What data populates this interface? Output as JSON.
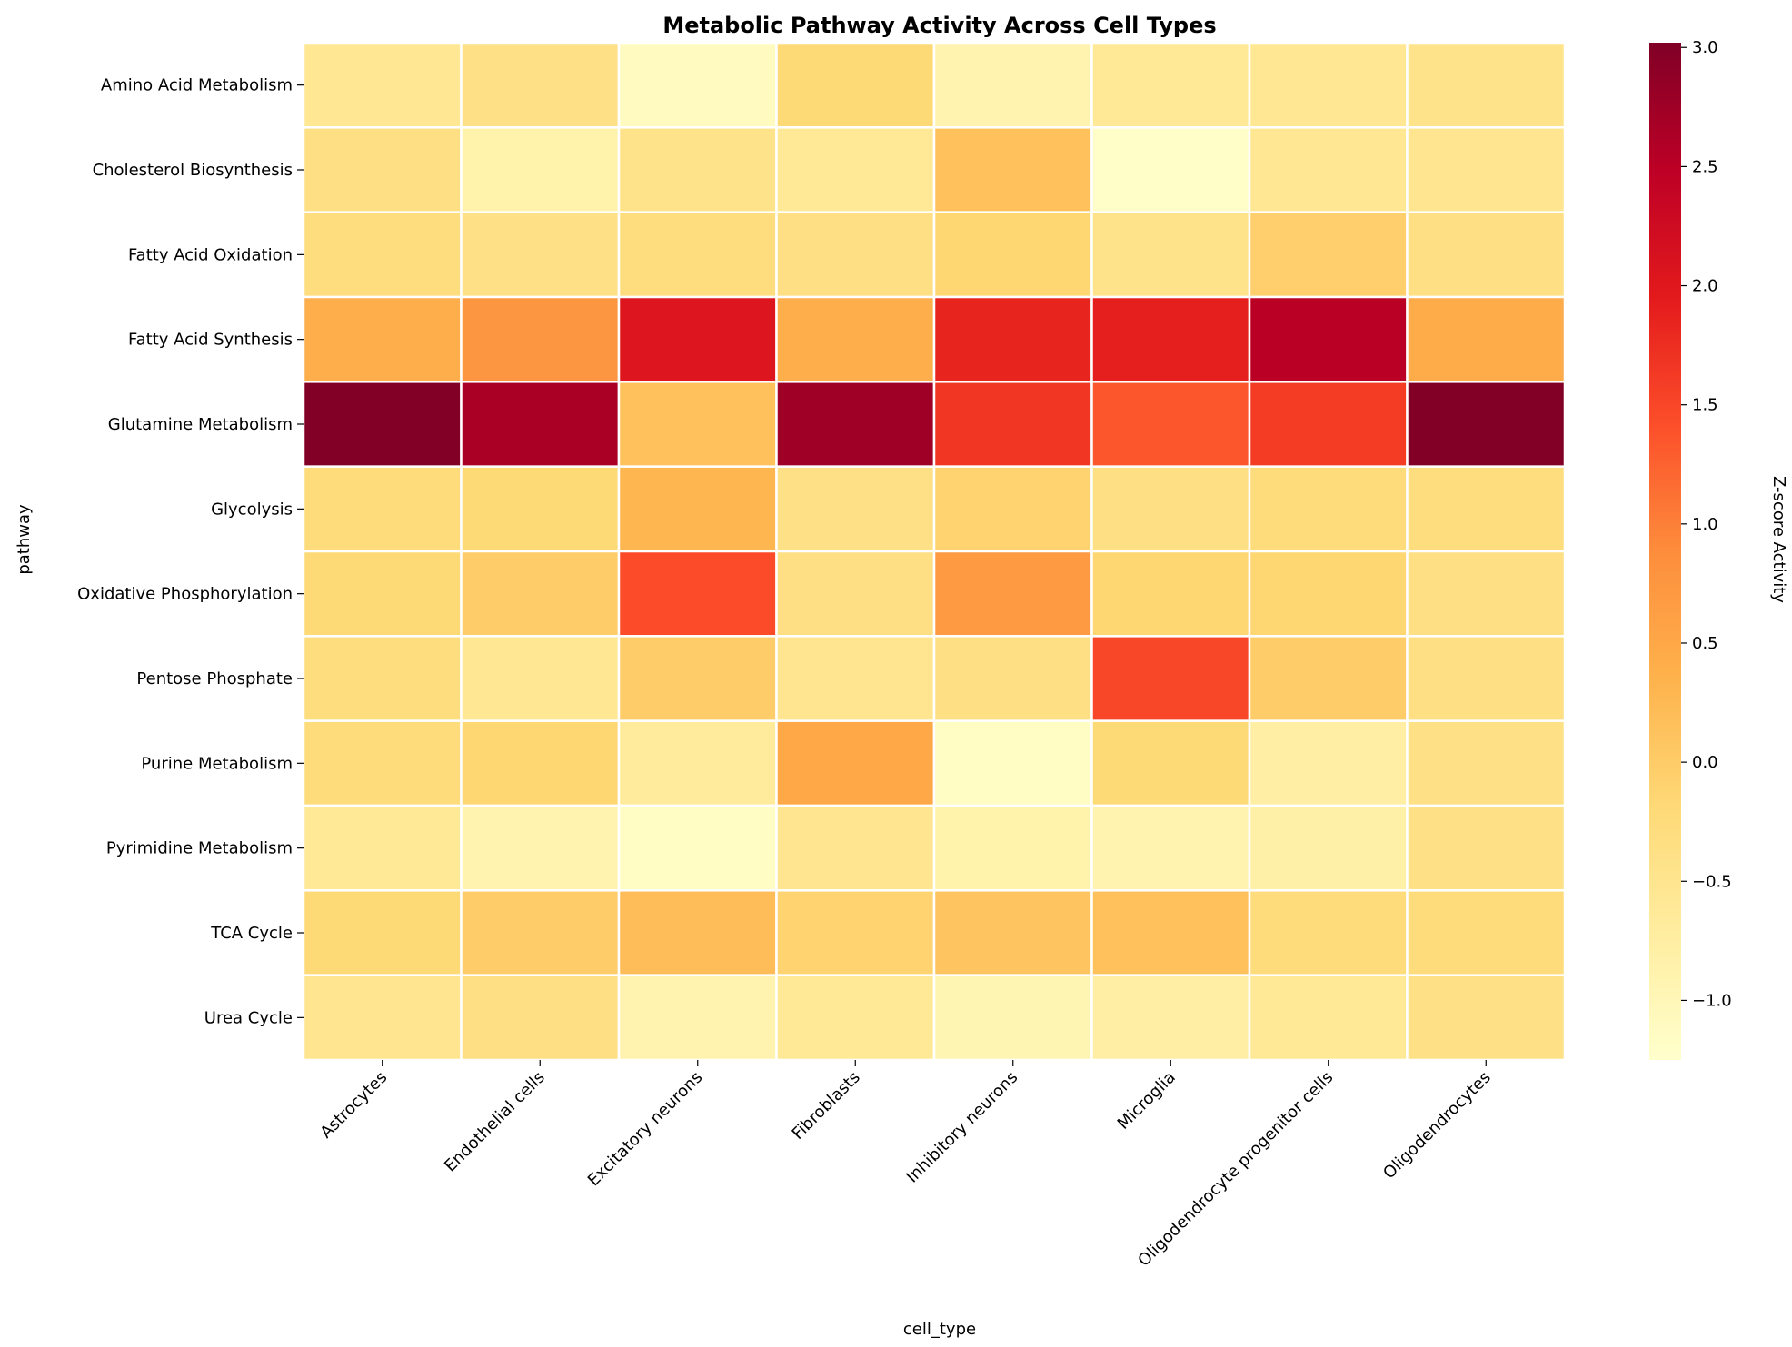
{
  "chart_data": {
    "type": "heatmap",
    "title": "Metabolic Pathway Activity Across Cell Types",
    "xlabel": "cell_type",
    "ylabel": "pathway",
    "colorbar_label": "Z-score Activity",
    "colormap": "YlOrRd",
    "color_range": [
      -1.25,
      3.02
    ],
    "colorbar_ticks": [
      3.0,
      2.5,
      2.0,
      1.5,
      1.0,
      0.5,
      0.0,
      -0.5,
      -1.0
    ],
    "colorbar_tick_labels": [
      "3.0",
      "2.5",
      "2.0",
      "1.5",
      "1.0",
      "0.5",
      "0.0",
      "−0.5",
      "−1.0"
    ],
    "x_categories": [
      "Astrocytes",
      "Endothelial cells",
      "Excitatory neurons",
      "Fibroblasts",
      "Inhibitory neurons",
      "Microglia",
      "Oligodendrocyte progenitor cells",
      "Oligodendrocytes"
    ],
    "y_categories": [
      "Amino Acid Metabolism",
      "Cholesterol Biosynthesis",
      "Fatty Acid Oxidation",
      "Fatty Acid Synthesis",
      "Glutamine Metabolism",
      "Glycolysis",
      "Oxidative Phosphorylation",
      "Pentose Phosphate",
      "Purine Metabolism",
      "Pyrimidine Metabolism",
      "TCA Cycle",
      "Urea Cycle"
    ],
    "values": [
      [
        -0.55,
        -0.4,
        -1.1,
        -0.2,
        -0.9,
        -0.6,
        -0.55,
        -0.45
      ],
      [
        -0.35,
        -0.85,
        -0.45,
        -0.6,
        0.15,
        -1.2,
        -0.55,
        -0.5
      ],
      [
        -0.3,
        -0.4,
        -0.3,
        -0.35,
        -0.15,
        -0.45,
        -0.05,
        -0.35
      ],
      [
        0.4,
        0.75,
        2.05,
        0.4,
        1.85,
        1.9,
        2.5,
        0.45
      ],
      [
        3.0,
        2.65,
        0.15,
        2.75,
        1.65,
        1.35,
        1.6,
        3.0
      ],
      [
        -0.25,
        -0.2,
        0.3,
        -0.4,
        -0.1,
        -0.35,
        -0.25,
        -0.3
      ],
      [
        -0.2,
        0.0,
        1.45,
        -0.35,
        0.7,
        -0.15,
        -0.15,
        -0.35
      ],
      [
        -0.3,
        -0.55,
        0.0,
        -0.5,
        -0.35,
        1.5,
        0.0,
        -0.35
      ],
      [
        -0.25,
        -0.15,
        -0.65,
        0.5,
        -1.15,
        -0.2,
        -0.75,
        -0.4
      ],
      [
        -0.6,
        -0.9,
        -1.15,
        -0.5,
        -0.85,
        -0.9,
        -0.8,
        -0.4
      ],
      [
        -0.2,
        0.0,
        0.2,
        -0.1,
        0.1,
        0.15,
        -0.25,
        -0.25
      ],
      [
        -0.5,
        -0.35,
        -0.9,
        -0.6,
        -0.95,
        -0.75,
        -0.6,
        -0.4
      ]
    ]
  }
}
